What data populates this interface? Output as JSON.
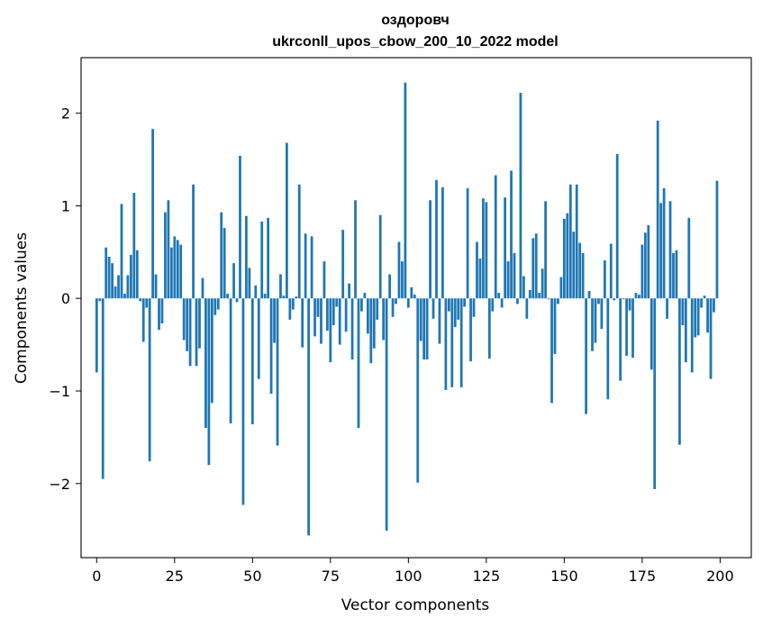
{
  "chart_data": {
    "type": "bar",
    "title": "оздоровч",
    "subtitle": "ukrconll_upos_cbow_200_10_2022 model",
    "xlabel": "Vector components",
    "ylabel": "Components values",
    "xlim": [
      -5,
      210
    ],
    "ylim": [
      -2.8,
      2.6
    ],
    "xticks": [
      0,
      25,
      50,
      75,
      100,
      125,
      150,
      175,
      200
    ],
    "yticks": [
      -2,
      -1,
      0,
      1,
      2
    ],
    "ytick_labels": [
      "−2",
      "−1",
      "0",
      "1",
      "2"
    ],
    "grid": false,
    "legend": "none",
    "bar_color": "#1f77b4",
    "x": [
      0,
      1,
      2,
      3,
      4,
      5,
      6,
      7,
      8,
      9,
      10,
      11,
      12,
      13,
      14,
      15,
      16,
      17,
      18,
      19,
      20,
      21,
      22,
      23,
      24,
      25,
      26,
      27,
      28,
      29,
      30,
      31,
      32,
      33,
      34,
      35,
      36,
      37,
      38,
      39,
      40,
      41,
      42,
      43,
      44,
      45,
      46,
      47,
      48,
      49,
      50,
      51,
      52,
      53,
      54,
      55,
      56,
      57,
      58,
      59,
      60,
      61,
      62,
      63,
      64,
      65,
      66,
      67,
      68,
      69,
      70,
      71,
      72,
      73,
      74,
      75,
      76,
      77,
      78,
      79,
      80,
      81,
      82,
      83,
      84,
      85,
      86,
      87,
      88,
      89,
      90,
      91,
      92,
      93,
      94,
      95,
      96,
      97,
      98,
      99,
      100,
      101,
      102,
      103,
      104,
      105,
      106,
      107,
      108,
      109,
      110,
      111,
      112,
      113,
      114,
      115,
      116,
      117,
      118,
      119,
      120,
      121,
      122,
      123,
      124,
      125,
      126,
      127,
      128,
      129,
      130,
      131,
      132,
      133,
      134,
      135,
      136,
      137,
      138,
      139,
      140,
      141,
      142,
      143,
      144,
      145,
      146,
      147,
      148,
      149,
      150,
      151,
      152,
      153,
      154,
      155,
      156,
      157,
      158,
      159,
      160,
      161,
      162,
      163,
      164,
      165,
      166,
      167,
      168,
      169,
      170,
      171,
      172,
      173,
      174,
      175,
      176,
      177,
      178,
      179,
      180,
      181,
      182,
      183,
      184,
      185,
      186,
      187,
      188,
      189,
      190,
      191,
      192,
      193,
      194,
      195,
      196,
      197,
      198,
      199
    ],
    "values": [
      -0.8,
      -0.03,
      -1.95,
      0.55,
      0.45,
      0.38,
      0.13,
      0.25,
      1.02,
      0.05,
      0.25,
      0.47,
      1.14,
      0.52,
      -0.03,
      -0.47,
      -0.1,
      -1.76,
      1.83,
      0.26,
      -0.34,
      -0.27,
      0.93,
      1.06,
      0.55,
      0.67,
      0.63,
      0.58,
      -0.45,
      -0.57,
      -0.73,
      1.23,
      -0.73,
      -0.54,
      0.22,
      -1.4,
      -1.8,
      -1.13,
      -0.18,
      -0.12,
      0.93,
      0.76,
      0.05,
      -1.35,
      0.38,
      -0.04,
      1.54,
      -2.23,
      0.89,
      0.33,
      -1.36,
      0.14,
      -0.87,
      0.83,
      0.05,
      0.87,
      -1.03,
      -0.48,
      -1.59,
      0.26,
      0.03,
      1.68,
      -0.23,
      -0.12,
      0.02,
      1.23,
      -0.53,
      0.7,
      -2.56,
      0.67,
      -0.41,
      -0.2,
      -0.49,
      0.4,
      -0.35,
      -0.69,
      -0.29,
      -0.09,
      -0.5,
      0.74,
      -0.36,
      0.16,
      -0.66,
      1.06,
      -1.4,
      -0.14,
      0.06,
      -0.38,
      -0.7,
      -0.54,
      -0.23,
      0.9,
      -0.45,
      -2.51,
      0.26,
      -0.2,
      -0.06,
      0.61,
      0.4,
      2.33,
      -0.1,
      0.12,
      0.04,
      -1.99,
      -0.46,
      -0.66,
      -0.66,
      1.06,
      -0.22,
      1.28,
      -0.49,
      1.2,
      -0.99,
      -0.14,
      -0.96,
      -0.31,
      -0.23,
      -0.96,
      -0.09,
      1.19,
      -0.68,
      -0.2,
      0.61,
      0.43,
      1.08,
      1.04,
      -0.65,
      -0.14,
      1.33,
      0.06,
      -0.1,
      1.09,
      0.4,
      1.38,
      0.49,
      -0.06,
      2.22,
      0.24,
      -0.22,
      0.09,
      0.65,
      0.7,
      0.06,
      0.32,
      1.05,
      -0.01,
      -1.13,
      -0.6,
      -0.06,
      0.23,
      0.86,
      0.92,
      1.23,
      0.72,
      1.23,
      0.6,
      0.49,
      -1.25,
      0.08,
      -0.57,
      -0.48,
      -0.06,
      -0.33,
      0.41,
      -1.09,
      0.59,
      -0.02,
      1.56,
      -0.89,
      -0.01,
      -0.62,
      -0.13,
      -0.64,
      0.06,
      0.04,
      0.58,
      0.71,
      0.79,
      -0.77,
      -2.06,
      1.92,
      1.03,
      1.19,
      -0.22,
      1.05,
      0.49,
      0.52,
      -1.58,
      -0.29,
      -0.69,
      0.87,
      -0.8,
      -0.42,
      -0.4,
      -0.1,
      0.03,
      -0.37,
      -0.87,
      -0.15,
      1.27
    ]
  }
}
